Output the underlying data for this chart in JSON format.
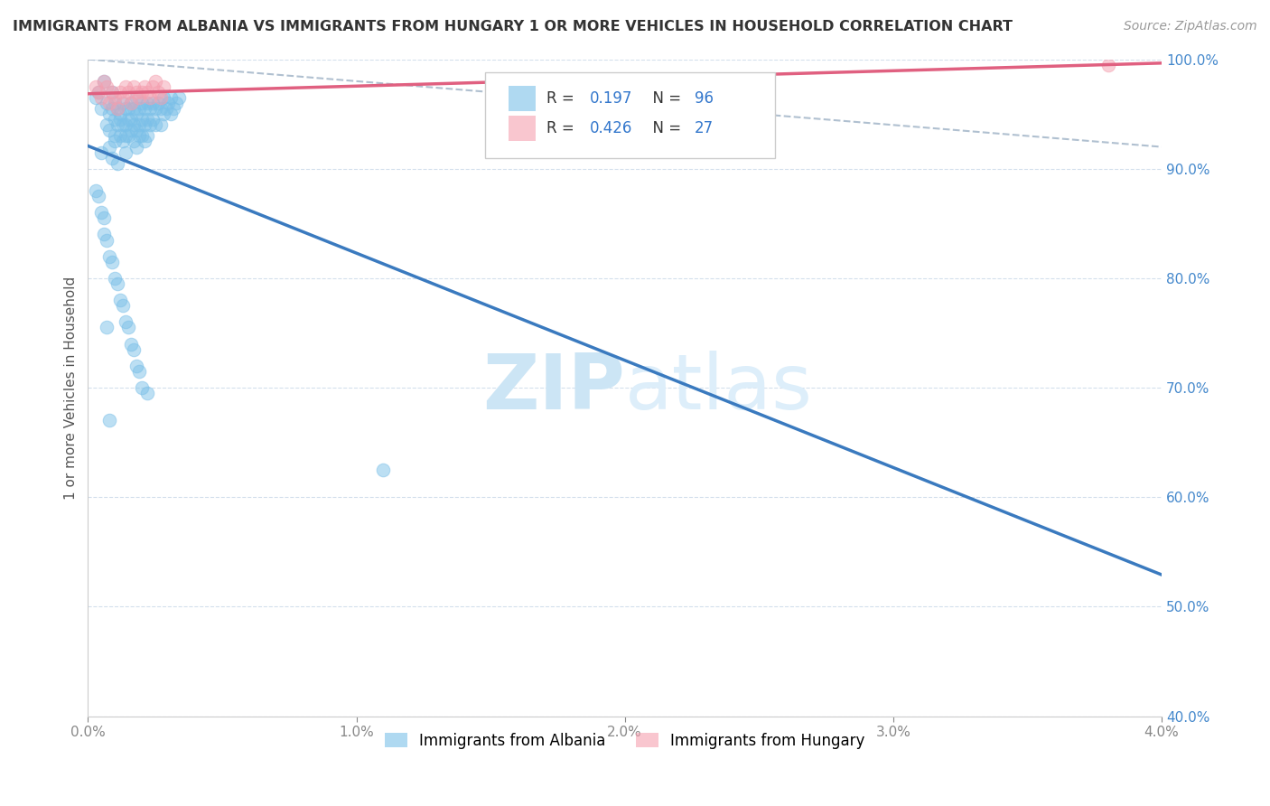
{
  "title": "IMMIGRANTS FROM ALBANIA VS IMMIGRANTS FROM HUNGARY 1 OR MORE VEHICLES IN HOUSEHOLD CORRELATION CHART",
  "source": "Source: ZipAtlas.com",
  "ylabel": "1 or more Vehicles in Household",
  "xlim": [
    0.0,
    4.0
  ],
  "ylim": [
    40.0,
    100.0
  ],
  "xtick_labels": [
    "0.0%",
    "1.0%",
    "2.0%",
    "3.0%",
    "4.0%"
  ],
  "xtick_vals": [
    0.0,
    1.0,
    2.0,
    3.0,
    4.0
  ],
  "ytick_labels": [
    "40.0%",
    "50.0%",
    "60.0%",
    "70.0%",
    "80.0%",
    "90.0%",
    "100.0%"
  ],
  "ytick_vals": [
    40.0,
    50.0,
    60.0,
    70.0,
    80.0,
    90.0,
    100.0
  ],
  "albania_color": "#7bc0e8",
  "hungary_color": "#f5a0b0",
  "albania_R": 0.197,
  "albania_N": 96,
  "hungary_R": 0.426,
  "hungary_N": 27,
  "albania_line_color": "#3a7abf",
  "hungary_line_color": "#e06080",
  "diagonal_line_color": "#b0c0d0",
  "background_color": "#ffffff",
  "grid_color": "#c8d8e8",
  "watermark_zip": "ZIP",
  "watermark_atlas": "atlas",
  "watermark_color_zip": "#b8d8f0",
  "watermark_color_atlas": "#c8e0f0",
  "albania_x": [
    0.03,
    0.04,
    0.05,
    0.06,
    0.07,
    0.07,
    0.08,
    0.08,
    0.08,
    0.09,
    0.09,
    0.09,
    0.1,
    0.1,
    0.1,
    0.1,
    0.11,
    0.11,
    0.11,
    0.12,
    0.12,
    0.12,
    0.13,
    0.13,
    0.13,
    0.14,
    0.14,
    0.14,
    0.14,
    0.15,
    0.15,
    0.15,
    0.16,
    0.16,
    0.16,
    0.17,
    0.17,
    0.17,
    0.18,
    0.18,
    0.18,
    0.18,
    0.19,
    0.19,
    0.19,
    0.2,
    0.2,
    0.2,
    0.21,
    0.21,
    0.21,
    0.22,
    0.22,
    0.22,
    0.23,
    0.23,
    0.24,
    0.24,
    0.25,
    0.25,
    0.26,
    0.27,
    0.27,
    0.28,
    0.28,
    0.29,
    0.3,
    0.31,
    0.31,
    0.32,
    0.33,
    0.34,
    0.03,
    0.04,
    0.05,
    0.06,
    0.06,
    0.07,
    0.08,
    0.09,
    0.1,
    0.11,
    0.12,
    0.13,
    0.14,
    0.15,
    0.16,
    0.17,
    0.18,
    0.19,
    0.2,
    0.22,
    0.05,
    1.1,
    0.07,
    0.08
  ],
  "albania_y": [
    96.5,
    97.0,
    95.5,
    98.0,
    96.0,
    94.0,
    95.0,
    93.5,
    92.0,
    97.0,
    95.5,
    91.0,
    96.0,
    94.5,
    93.0,
    92.5,
    95.5,
    94.0,
    90.5,
    95.0,
    94.5,
    93.0,
    96.0,
    94.0,
    92.5,
    95.5,
    94.0,
    93.0,
    91.5,
    95.5,
    94.5,
    93.0,
    96.0,
    94.5,
    93.5,
    95.5,
    94.0,
    92.5,
    96.5,
    95.0,
    93.5,
    92.0,
    95.5,
    94.0,
    93.0,
    96.0,
    94.5,
    93.0,
    95.5,
    94.0,
    92.5,
    96.0,
    94.5,
    93.0,
    95.5,
    94.0,
    96.0,
    94.5,
    95.5,
    94.0,
    96.0,
    95.5,
    94.0,
    96.5,
    95.0,
    95.5,
    96.0,
    96.5,
    95.0,
    95.5,
    96.0,
    96.5,
    88.0,
    87.5,
    86.0,
    85.5,
    84.0,
    83.5,
    82.0,
    81.5,
    80.0,
    79.5,
    78.0,
    77.5,
    76.0,
    75.5,
    74.0,
    73.5,
    72.0,
    71.5,
    70.0,
    69.5,
    91.5,
    62.5,
    75.5,
    67.0
  ],
  "hungary_x": [
    0.03,
    0.04,
    0.05,
    0.06,
    0.07,
    0.08,
    0.09,
    0.1,
    0.11,
    0.12,
    0.13,
    0.14,
    0.15,
    0.16,
    0.17,
    0.18,
    0.19,
    0.2,
    0.21,
    0.22,
    0.23,
    0.24,
    0.25,
    0.26,
    0.27,
    0.28,
    3.8
  ],
  "hungary_y": [
    97.5,
    97.0,
    96.5,
    98.0,
    97.5,
    96.0,
    97.0,
    96.5,
    95.5,
    97.0,
    96.5,
    97.5,
    97.0,
    96.0,
    97.5,
    97.0,
    96.5,
    97.0,
    97.5,
    97.0,
    96.5,
    97.5,
    98.0,
    97.0,
    96.5,
    97.5,
    99.5
  ]
}
